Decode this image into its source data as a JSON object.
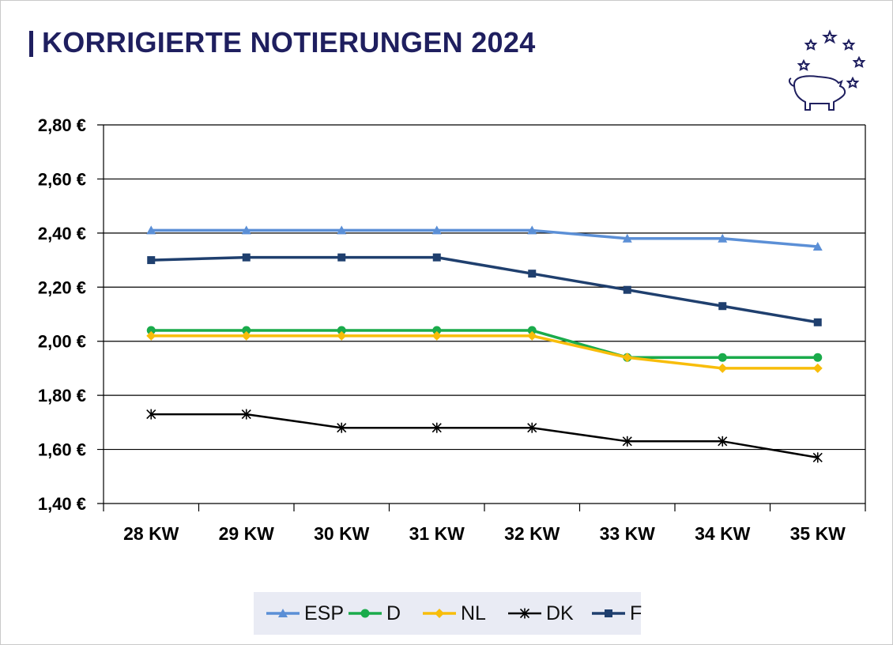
{
  "title": "KORRIGIERTE NOTIERUNGEN 2024",
  "icons": {
    "logo": "pig-with-stars-icon"
  },
  "colors": {
    "title": "#1f1f5f",
    "ESP": "#5b8fd6",
    "D": "#1aab4b",
    "NL": "#f8bd0a",
    "DK": "#000000",
    "F": "#1f3f6e"
  },
  "chart_data": {
    "type": "line",
    "title": "KORRIGIERTE NOTIERUNGEN 2024",
    "categories": [
      "28 KW",
      "29 KW",
      "30 KW",
      "31 KW",
      "32 KW",
      "33 KW",
      "34 KW",
      "35 KW"
    ],
    "ylim": [
      1.4,
      2.8
    ],
    "yticks": [
      "1,40 €",
      "1,60 €",
      "1,80 €",
      "2,00 €",
      "2,20 €",
      "2,40 €",
      "2,60 €",
      "2,80 €"
    ],
    "grid": true,
    "legend_position": "bottom",
    "series": [
      {
        "name": "ESP",
        "marker": "triangle",
        "values": [
          2.41,
          2.41,
          2.41,
          2.41,
          2.41,
          2.38,
          2.38,
          2.35
        ]
      },
      {
        "name": "D",
        "marker": "circle",
        "values": [
          2.04,
          2.04,
          2.04,
          2.04,
          2.04,
          1.94,
          1.94,
          1.94
        ]
      },
      {
        "name": "NL",
        "marker": "diamond",
        "values": [
          2.02,
          2.02,
          2.02,
          2.02,
          2.02,
          1.94,
          1.9,
          1.9
        ]
      },
      {
        "name": "DK",
        "marker": "star",
        "values": [
          1.73,
          1.73,
          1.68,
          1.68,
          1.68,
          1.63,
          1.63,
          1.57
        ]
      },
      {
        "name": "F",
        "marker": "square",
        "values": [
          2.3,
          2.31,
          2.31,
          2.31,
          2.25,
          2.19,
          2.13,
          2.07
        ]
      }
    ]
  }
}
